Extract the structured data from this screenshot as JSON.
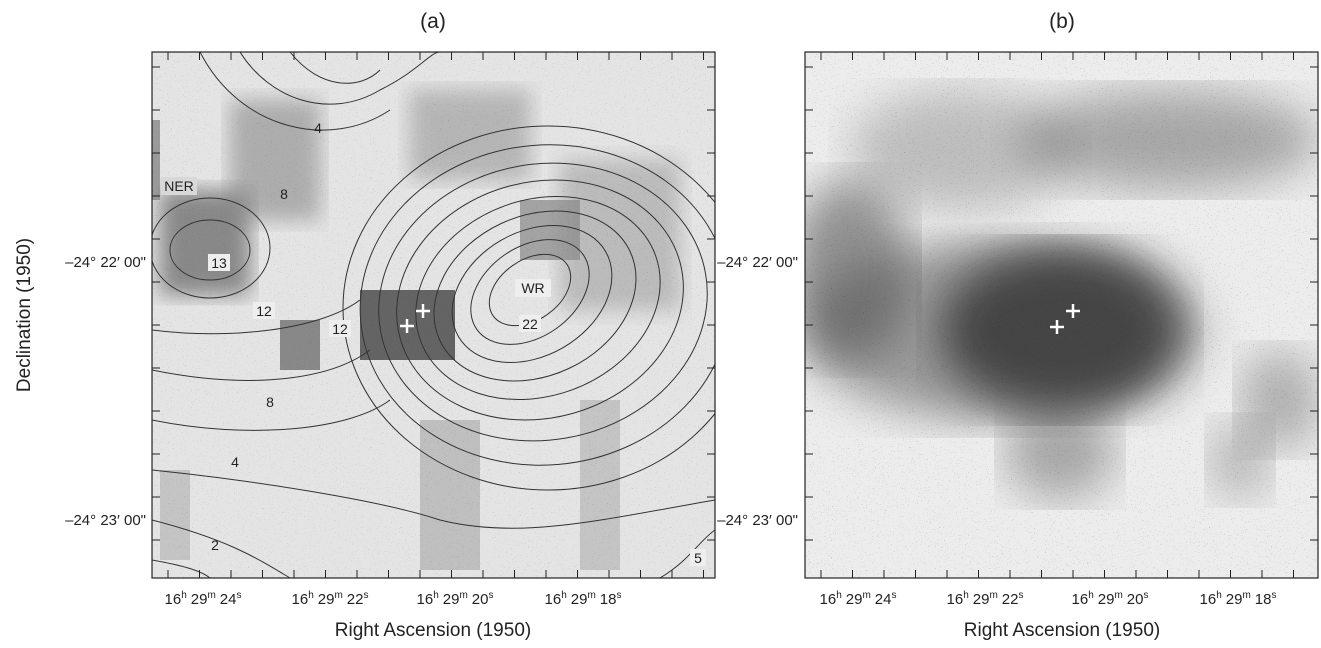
{
  "panels": [
    {
      "title": "(a)",
      "x_label": "Right Ascension (1950)",
      "y_label": "Declination (1950)",
      "x_ticks": [
        [
          "16",
          "h",
          "29",
          "m",
          "24",
          "s"
        ],
        [
          "16",
          "h",
          "29",
          "m",
          "22",
          "s"
        ],
        [
          "16",
          "h",
          "29",
          "m",
          "20",
          "s"
        ],
        [
          "16",
          "h",
          "29",
          "m",
          "18",
          "s"
        ]
      ],
      "y_ticks": [
        "–24° 22′ 00\"",
        "–24° 23′ 00\""
      ],
      "annotations": [
        "NER",
        "13",
        "12",
        "12",
        "8",
        "4",
        "8",
        "4",
        "2",
        "WR",
        "22",
        "5"
      ]
    },
    {
      "title": "(b)",
      "x_label": "Right Ascension (1950)",
      "x_ticks": [
        [
          "16",
          "h",
          "29",
          "m",
          "24",
          "s"
        ],
        [
          "16",
          "h",
          "29",
          "m",
          "22",
          "s"
        ],
        [
          "16",
          "h",
          "29",
          "m",
          "20",
          "s"
        ],
        [
          "16",
          "h",
          "29",
          "m",
          "18",
          "s"
        ]
      ],
      "y_ticks": [
        "–24° 22′ 00\"",
        "–24° 23′ 00\""
      ]
    }
  ]
}
